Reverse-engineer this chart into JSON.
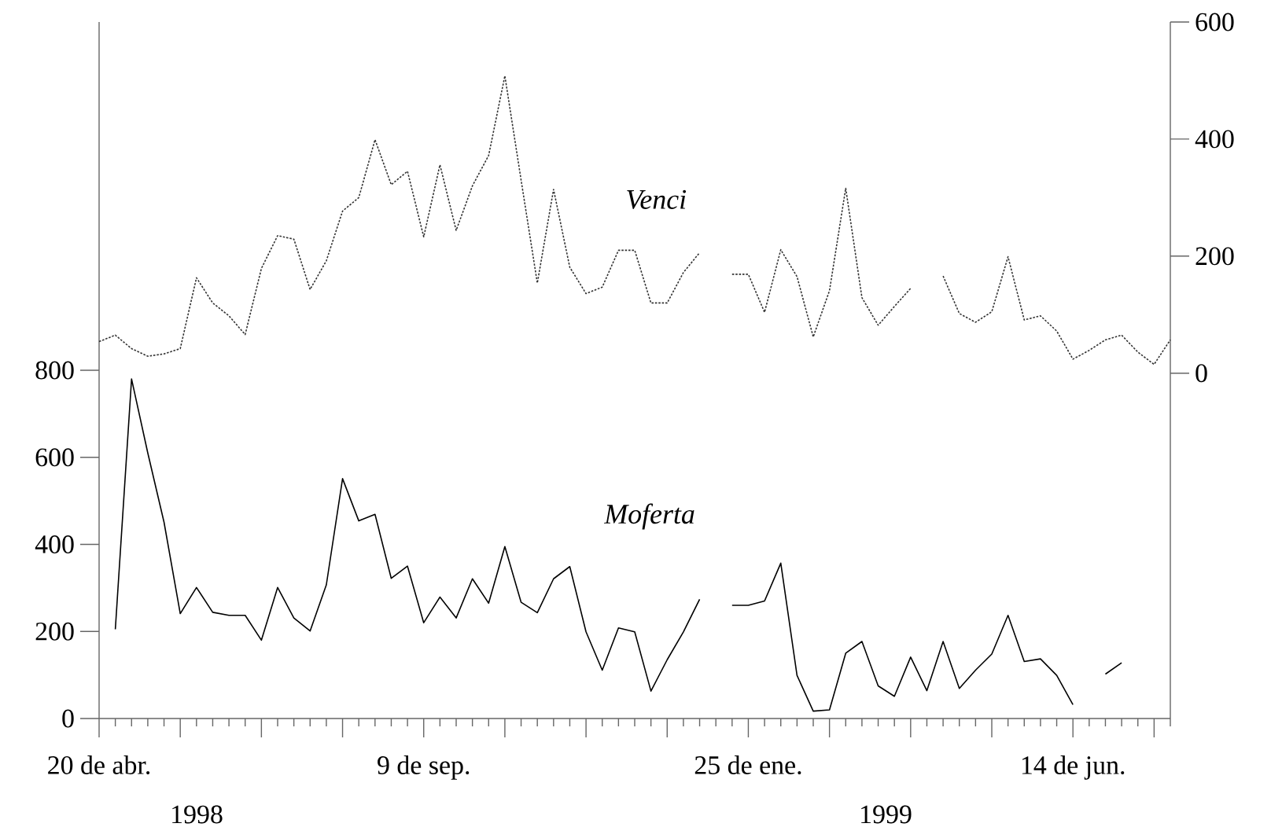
{
  "chart_data": {
    "type": "line",
    "categories": [
      "20 de abr.",
      null,
      null,
      null,
      null,
      null,
      null,
      null,
      null,
      null,
      null,
      null,
      null,
      null,
      null,
      null,
      null,
      null,
      null,
      null,
      "9 de sep.",
      null,
      null,
      null,
      null,
      null,
      null,
      null,
      null,
      null,
      null,
      null,
      null,
      null,
      null,
      null,
      null,
      null,
      null,
      null,
      "25 de ene.",
      null,
      null,
      null,
      null,
      null,
      null,
      null,
      null,
      null,
      null,
      null,
      null,
      null,
      null,
      null,
      null,
      null,
      null,
      null,
      "14 de jun.",
      null,
      null,
      null,
      null,
      null,
      null
    ],
    "series": [
      {
        "name": "Moferta",
        "color": "#000000",
        "line_style": "solid",
        "values": [
          null,
          205,
          780,
          610,
          451,
          241,
          301,
          244,
          237,
          237,
          180,
          301,
          231,
          201,
          307,
          551,
          454,
          469,
          322,
          350,
          220,
          279,
          231,
          321,
          265,
          395,
          267,
          243,
          321,
          349,
          199,
          111,
          208,
          199,
          63,
          135,
          199,
          274,
          null,
          260,
          260,
          270,
          357,
          99,
          17,
          20,
          150,
          177,
          75,
          51,
          141,
          64,
          177,
          69,
          111,
          148,
          237,
          131,
          137,
          99,
          32,
          null,
          102,
          128,
          null,
          null,
          null
        ]
      },
      {
        "name": "Venci",
        "color": "#333333",
        "line_style": "dotted",
        "axis": "y2",
        "values": [
          54,
          65,
          42,
          29,
          33,
          42,
          163,
          120,
          98,
          66,
          179,
          235,
          229,
          143,
          192,
          277,
          300,
          399,
          322,
          345,
          233,
          356,
          244,
          320,
          372,
          508,
          330,
          154,
          314,
          181,
          136,
          147,
          210,
          210,
          120,
          120,
          172,
          206,
          null,
          169,
          169,
          104,
          211,
          165,
          62,
          141,
          316,
          129,
          82,
          114,
          145,
          null,
          166,
          102,
          87,
          105,
          199,
          91,
          98,
          72,
          24,
          39,
          57,
          65,
          36,
          15,
          57
        ]
      }
    ],
    "ylim": [
      0,
      1600
    ],
    "yticks": [
      0,
      200,
      400,
      600,
      800
    ],
    "y2lim": [
      -590,
      600
    ],
    "y2ticks": [
      0,
      200,
      400,
      600
    ],
    "annotations": [
      "1998",
      "1999"
    ],
    "grid": false,
    "marker": "none"
  }
}
